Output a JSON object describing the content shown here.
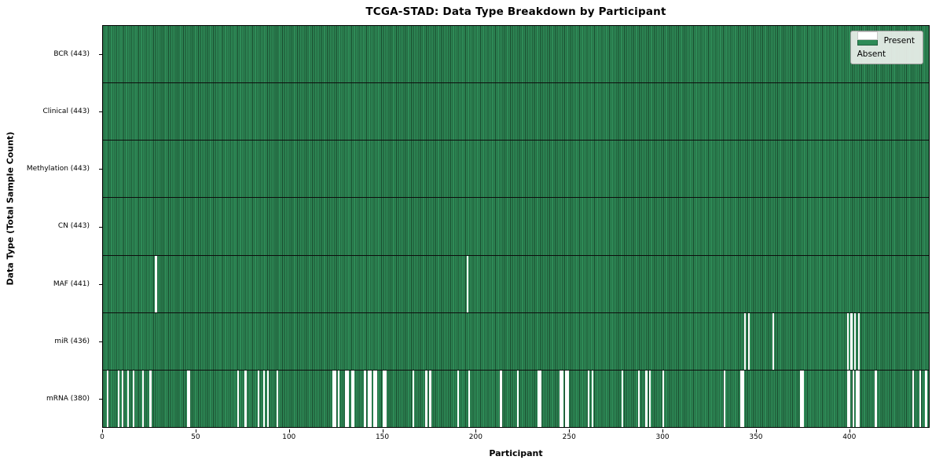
{
  "colors": {
    "present": "#2e8b57",
    "bar_edge": "#194a2d",
    "absent": "#ffffff",
    "row_divider": "#0d0d0d",
    "frame": "#000000",
    "legend_background": "#ecf0ec"
  },
  "chart_data": {
    "type": "heatmap",
    "title": "TCGA-STAD: Data Type Breakdown by Participant",
    "xlabel": "Participant",
    "ylabel": "Data Type (Total Sample Count)",
    "legend": [
      "Present",
      "Absent"
    ],
    "legend_position": "upper right",
    "grid": false,
    "n_participants": 443,
    "x_ticks": [
      0,
      50,
      100,
      150,
      200,
      250,
      300,
      350,
      400
    ],
    "rows": [
      {
        "label": "BCR (443)",
        "data_type": "BCR",
        "present_count": 443,
        "absent_participants": []
      },
      {
        "label": "Clinical (443)",
        "data_type": "Clinical",
        "present_count": 443,
        "absent_participants": []
      },
      {
        "label": "Methylation (443)",
        "data_type": "Methylation",
        "present_count": 443,
        "absent_participants": []
      },
      {
        "label": "CN (443)",
        "data_type": "CN",
        "present_count": 443,
        "absent_participants": []
      },
      {
        "label": "MAF (441)",
        "data_type": "MAF",
        "present_count": 441,
        "absent_participants": [
          28,
          195
        ]
      },
      {
        "label": "miR (436)",
        "data_type": "miR",
        "present_count": 436,
        "absent_participants": [
          344,
          346,
          359,
          399,
          401,
          403,
          405
        ]
      },
      {
        "label": "mRNA (380)",
        "data_type": "mRNA",
        "present_count": 380,
        "absent_participants": [
          2,
          8,
          10,
          13,
          16,
          21,
          25,
          45,
          46,
          72,
          76,
          83,
          86,
          88,
          93,
          123,
          124,
          126,
          130,
          131,
          133,
          134,
          140,
          142,
          143,
          145,
          146,
          150,
          151,
          166,
          173,
          175,
          190,
          196,
          213,
          222,
          233,
          234,
          245,
          246,
          248,
          249,
          260,
          262,
          278,
          287,
          291,
          293,
          300,
          333,
          342,
          343,
          374,
          375,
          399,
          400,
          402,
          404,
          405,
          414,
          434,
          438,
          441
        ]
      }
    ]
  }
}
